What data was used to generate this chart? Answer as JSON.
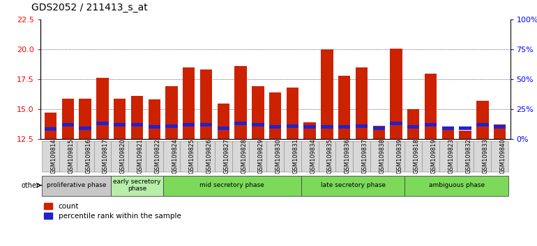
{
  "title": "GDS2052 / 211413_s_at",
  "samples": [
    "GSM109814",
    "GSM109815",
    "GSM109816",
    "GSM109817",
    "GSM109820",
    "GSM109821",
    "GSM109822",
    "GSM109824",
    "GSM109825",
    "GSM109826",
    "GSM109827",
    "GSM109828",
    "GSM109829",
    "GSM109830",
    "GSM109831",
    "GSM109834",
    "GSM109835",
    "GSM109836",
    "GSM109837",
    "GSM109838",
    "GSM109839",
    "GSM109818",
    "GSM109819",
    "GSM109823",
    "GSM109832",
    "GSM109833",
    "GSM109840"
  ],
  "count_values": [
    14.7,
    15.9,
    15.9,
    17.6,
    15.9,
    16.1,
    15.8,
    16.9,
    18.5,
    18.3,
    15.5,
    18.6,
    16.9,
    16.4,
    16.8,
    13.9,
    20.0,
    17.8,
    18.5,
    13.6,
    20.1,
    15.0,
    18.0,
    13.5,
    13.2,
    15.7,
    13.7
  ],
  "blue_bar_bottom": [
    13.2,
    13.55,
    13.25,
    13.65,
    13.55,
    13.55,
    13.35,
    13.45,
    13.55,
    13.55,
    13.25,
    13.65,
    13.55,
    13.35,
    13.45,
    13.35,
    13.35,
    13.35,
    13.45,
    13.25,
    13.65,
    13.35,
    13.55,
    13.25,
    13.25,
    13.55,
    13.35
  ],
  "blue_bar_height": 0.3,
  "ybase": 12.5,
  "phase_groups": [
    {
      "name": "proliferative phase",
      "count": 4,
      "color": "#c8c8c8"
    },
    {
      "name": "early secretory\nphase",
      "count": 3,
      "color": "#b8edaa"
    },
    {
      "name": "mid secretory phase",
      "count": 8,
      "color": "#7dd95a"
    },
    {
      "name": "late secretory phase",
      "count": 6,
      "color": "#7dd95a"
    },
    {
      "name": "ambiguous phase",
      "count": 6,
      "color": "#7dd95a"
    }
  ],
  "ylim_left": [
    12.5,
    22.5
  ],
  "ylim_right": [
    0,
    100
  ],
  "yticks_left": [
    12.5,
    15.0,
    17.5,
    20.0,
    22.5
  ],
  "yticks_right": [
    0,
    25,
    50,
    75,
    100
  ],
  "bar_color_red": "#cc2200",
  "bar_color_blue": "#2222cc",
  "title_fontsize": 10,
  "tick_label_fontsize": 6,
  "bar_width": 0.7,
  "plot_bg": "#ffffff"
}
